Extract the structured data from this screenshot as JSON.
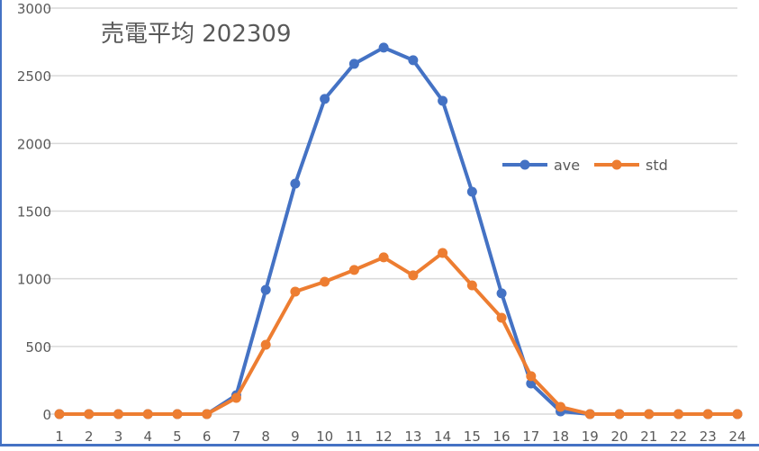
{
  "chart_data": {
    "type": "line",
    "title": "売電平均 202309",
    "xlabel": "",
    "ylabel": "",
    "categories": [
      "1",
      "2",
      "3",
      "4",
      "5",
      "6",
      "7",
      "8",
      "9",
      "10",
      "11",
      "12",
      "13",
      "14",
      "15",
      "16",
      "17",
      "18",
      "19",
      "20",
      "21",
      "22",
      "23",
      "24"
    ],
    "series": [
      {
        "name": "ave",
        "color": "#4472c4",
        "values": [
          0,
          0,
          0,
          0,
          0,
          0,
          140,
          918,
          1703,
          2329,
          2588,
          2708,
          2615,
          2315,
          1643,
          892,
          226,
          20,
          0,
          0,
          0,
          0,
          0,
          0
        ]
      },
      {
        "name": "std",
        "color": "#ed7d31",
        "values": [
          0,
          0,
          0,
          0,
          0,
          0,
          120,
          512,
          905,
          978,
          1065,
          1158,
          1025,
          1191,
          951,
          712,
          280,
          53,
          0,
          0,
          0,
          0,
          0,
          0
        ]
      }
    ],
    "ylim": [
      0,
      3000
    ],
    "yticks": [
      0,
      500,
      1000,
      1500,
      2000,
      2500,
      3000
    ],
    "grid": true,
    "legend_position": "right-middle"
  },
  "colors": {
    "grid": "#d9d9d9",
    "axis_text": "#595959",
    "frame": "#4472c4"
  }
}
